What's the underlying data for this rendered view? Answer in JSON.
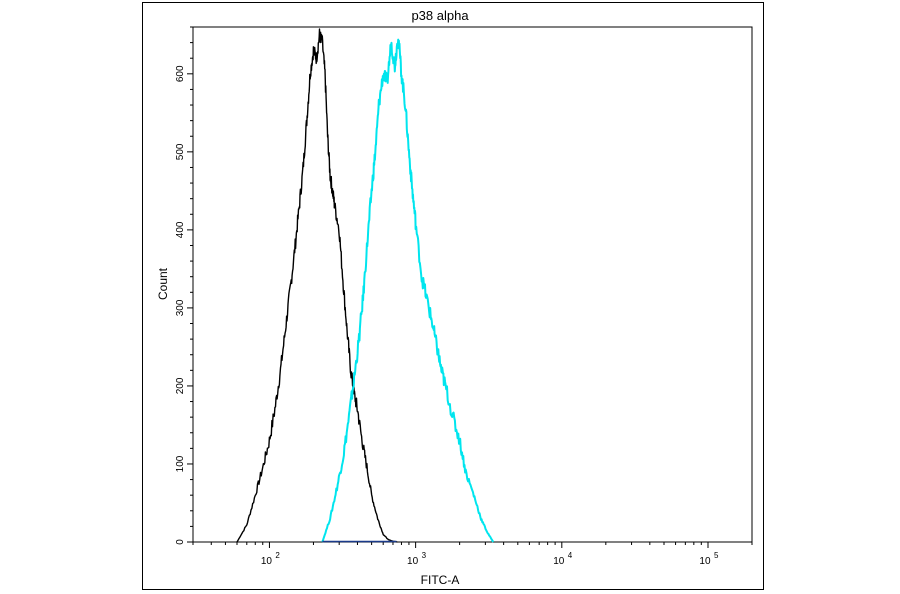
{
  "chart_data": {
    "type": "line",
    "title": "p38 alpha",
    "xlabel": "FITC-A",
    "ylabel": "Count",
    "x_scale": "log",
    "xlim": [
      30,
      200000
    ],
    "ylim": [
      0,
      660
    ],
    "x_ticks": [
      {
        "value": 100,
        "label": "10",
        "exp": "2"
      },
      {
        "value": 1000,
        "label": "10",
        "exp": "3"
      },
      {
        "value": 10000,
        "label": "10",
        "exp": "4"
      },
      {
        "value": 100000,
        "label": "10",
        "exp": "5"
      }
    ],
    "y_ticks": [
      0,
      100,
      200,
      300,
      400,
      500,
      600
    ],
    "grid": false,
    "series": [
      {
        "color": "#000000",
        "x": [
          60,
          70,
          80,
          90,
          100,
          110,
          120,
          130,
          140,
          150,
          160,
          170,
          180,
          190,
          200,
          210,
          220,
          230,
          240,
          250,
          260,
          270,
          280,
          300,
          320,
          340,
          360,
          380,
          400,
          430,
          460,
          500,
          550,
          600,
          650,
          700,
          750
        ],
        "y": [
          0,
          22,
          60,
          95,
          130,
          175,
          225,
          280,
          330,
          380,
          430,
          480,
          540,
          600,
          630,
          620,
          650,
          640,
          600,
          520,
          470,
          450,
          430,
          400,
          330,
          270,
          220,
          190,
          170,
          130,
          100,
          60,
          30,
          10,
          3,
          1,
          0
        ]
      },
      {
        "color": "#00e5ee",
        "x": [
          230,
          260,
          290,
          320,
          350,
          380,
          410,
          440,
          470,
          500,
          530,
          560,
          600,
          640,
          680,
          720,
          760,
          800,
          850,
          900,
          950,
          1000,
          1100,
          1200,
          1300,
          1400,
          1500,
          1600,
          1800,
          2000,
          2200,
          2500,
          2800,
          3100,
          3400
        ],
        "y": [
          0,
          30,
          70,
          110,
          160,
          210,
          260,
          320,
          390,
          450,
          500,
          560,
          600,
          590,
          640,
          610,
          650,
          600,
          560,
          500,
          450,
          410,
          340,
          310,
          280,
          250,
          220,
          200,
          160,
          130,
          90,
          60,
          30,
          12,
          0
        ]
      }
    ]
  }
}
